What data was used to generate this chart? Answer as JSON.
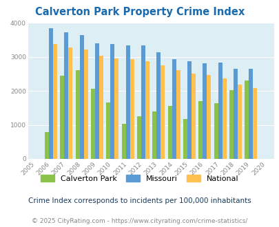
{
  "title": "Calverton Park Property Crime Index",
  "subtitle": "Crime Index corresponds to incidents per 100,000 inhabitants",
  "footer": "© 2025 CityRating.com - https://www.cityrating.com/crime-statistics/",
  "years": [
    2005,
    2006,
    2007,
    2008,
    2009,
    2010,
    2011,
    2012,
    2013,
    2014,
    2015,
    2016,
    2017,
    2018,
    2019,
    2020
  ],
  "calverton_park": [
    null,
    780,
    2440,
    2600,
    2060,
    1650,
    1030,
    1260,
    1400,
    1550,
    1180,
    1700,
    1640,
    2030,
    2300,
    null
  ],
  "missouri": [
    null,
    3830,
    3720,
    3640,
    3400,
    3370,
    3340,
    3340,
    3130,
    2920,
    2870,
    2810,
    2820,
    2640,
    2640,
    null
  ],
  "national": [
    null,
    3370,
    3280,
    3220,
    3040,
    2950,
    2930,
    2870,
    2740,
    2600,
    2510,
    2460,
    2360,
    2180,
    2090,
    null
  ],
  "bar_colors": {
    "calverton_park": "#8bc34a",
    "missouri": "#5b9bd5",
    "national": "#ffc04d"
  },
  "background_color": "#deeef5",
  "ylim": [
    0,
    4000
  ],
  "yticks": [
    0,
    1000,
    2000,
    3000,
    4000
  ],
  "title_color": "#1a6aaf",
  "subtitle_color": "#1a3a5c",
  "footer_color": "#888888",
  "legend_labels": [
    "Calverton Park",
    "Missouri",
    "National"
  ],
  "bar_width": 0.27
}
